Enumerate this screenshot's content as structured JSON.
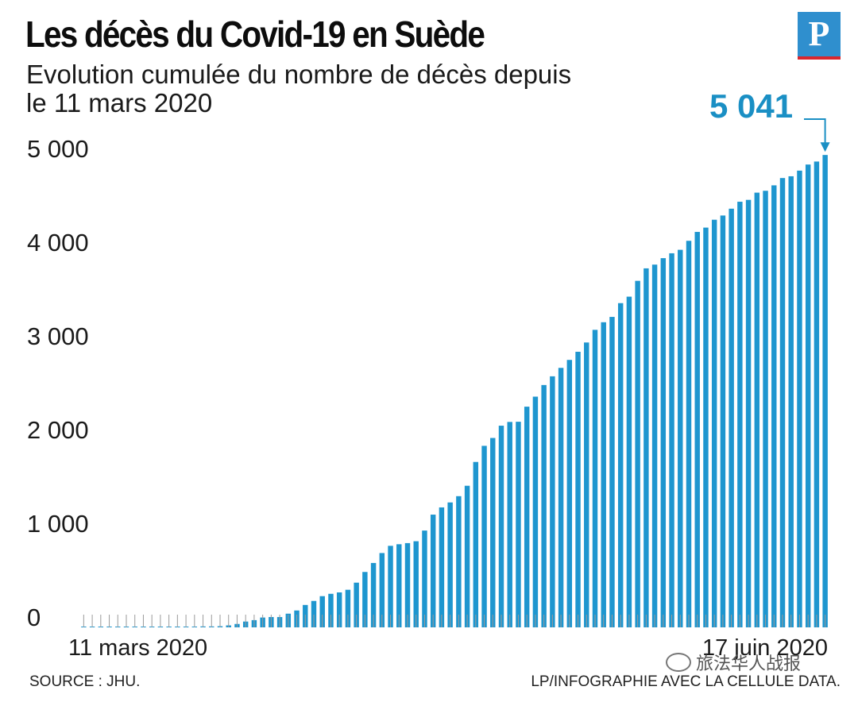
{
  "header": {
    "title": "Les décès du Covid-19 en Suède",
    "subtitle": "Evolution cumulée du nombre de décès depuis le 11 mars 2020",
    "logo_letter": "P"
  },
  "footer": {
    "source": "SOURCE : JHU.",
    "credit": "LP/INFOGRAPHIE AVEC LA CELLULE DATA."
  },
  "watermark": {
    "text": "旅法华人战报",
    "icon": "wechat-icon"
  },
  "colors": {
    "bar": "#1e96cf",
    "accent": "#1a8fc4",
    "logo_bg": "#2f8fce",
    "logo_underline": "#d8262e"
  },
  "chart_data": {
    "type": "bar",
    "title": "Les décès du Covid-19 en Suède",
    "subtitle": "Evolution cumulée du nombre de décès depuis le 11 mars 2020",
    "xlabel": "",
    "ylabel": "",
    "x_start_label": "11 mars 2020",
    "x_end_label": "17 juin 2020",
    "ylim": [
      0,
      5000
    ],
    "yticks": [
      0,
      1000,
      2000,
      3000,
      4000,
      5000
    ],
    "ytick_labels": [
      "0",
      "1 000",
      "2 000",
      "3 000",
      "4 000",
      "5 000"
    ],
    "grid": false,
    "annotation": {
      "text": "5 041",
      "target": "last bar"
    },
    "values": [
      1,
      1,
      1,
      1,
      1,
      1,
      1,
      1,
      1,
      1,
      1,
      1,
      1,
      7,
      10,
      10,
      12,
      21,
      36,
      62,
      77,
      105,
      110,
      110,
      146,
      180,
      239,
      282,
      333,
      358,
      373,
      401,
      477,
      591,
      687,
      793,
      870,
      887,
      899,
      919,
      1033,
      1203,
      1280,
      1333,
      1400,
      1511,
      1765,
      1937,
      2021,
      2152,
      2192,
      2194,
      2355,
      2462,
      2586,
      2679,
      2769,
      2854,
      2941,
      3040,
      3175,
      3256,
      3313,
      3460,
      3529,
      3698,
      3831,
      3871,
      3940,
      3992,
      4029,
      4125,
      4220,
      4266,
      4350,
      4395,
      4468,
      4542,
      4562,
      4639,
      4659,
      4717,
      4795,
      4814,
      4874,
      4939,
      4971,
      5041
    ]
  }
}
